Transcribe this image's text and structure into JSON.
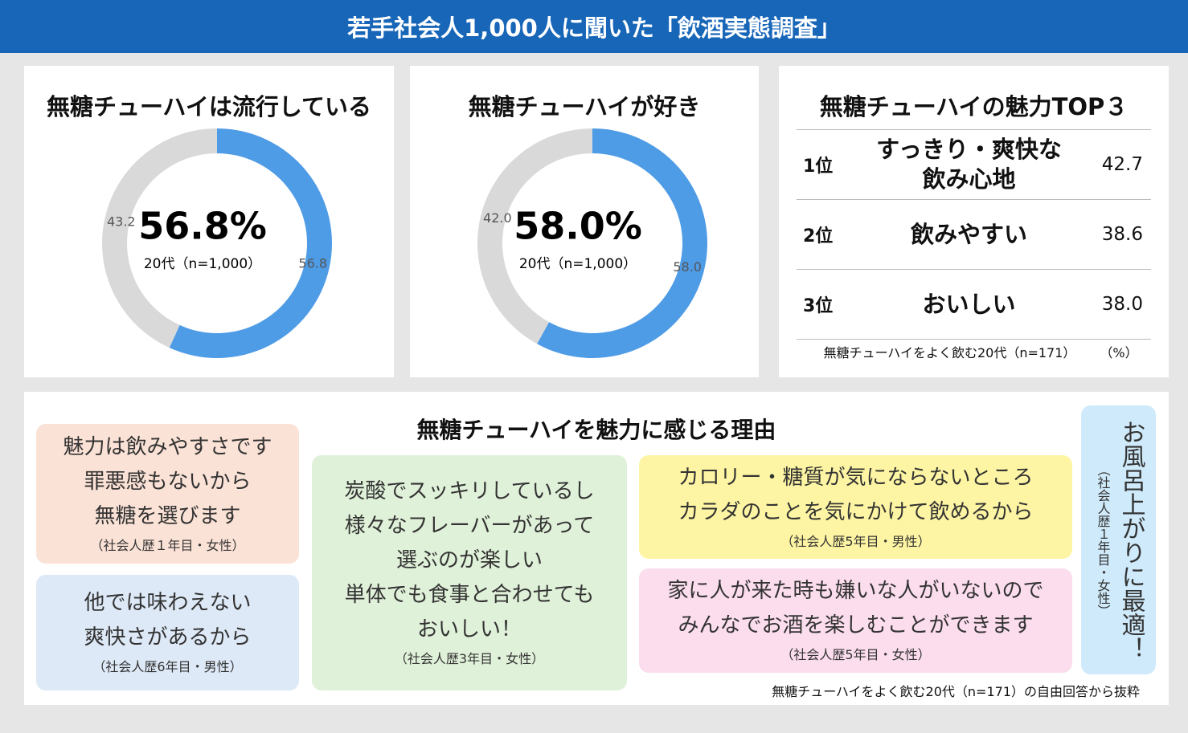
{
  "header": {
    "title": "若手社会人1,000人に聞いた「飲酒実態調査」"
  },
  "chart_data": [
    {
      "type": "pie",
      "donut": true,
      "title": "無糖チューハイは流行している",
      "values": [
        56.8,
        43.2
      ],
      "colors": [
        "#4e9be6",
        "#d9d9d9"
      ],
      "center_label": "56.8%",
      "center_note": "20代（n=1,000）"
    },
    {
      "type": "pie",
      "donut": true,
      "title": "無糖チューハイが好き",
      "values": [
        58.0,
        42.0
      ],
      "colors": [
        "#4e9be6",
        "#d9d9d9"
      ],
      "value_labels": [
        "58.0",
        "42.0"
      ],
      "center_label": "58.0%",
      "center_note": "20代（n=1,000）"
    }
  ],
  "ranking": {
    "title": "無糖チューハイの魅力TOP３",
    "rows": [
      {
        "rank": "1位",
        "item": [
          "すっきり・爽快な",
          "飲み心地"
        ],
        "value": "42.7"
      },
      {
        "rank": "2位",
        "item": [
          "飲みやすい"
        ],
        "value": "38.6"
      },
      {
        "rank": "3位",
        "item": [
          "おいしい"
        ],
        "value": "38.0"
      }
    ],
    "note": "無糖チューハイをよく飲む20代（n=171）",
    "unit": "（%）"
  },
  "reasons": {
    "title": "無糖チューハイを魅力に感じる理由",
    "items": [
      {
        "lines": [
          "魅力は飲みやすさです",
          "罪悪感もないから",
          "無糖を選びます"
        ],
        "attribution": "（社会人歴１年目・女性）"
      },
      {
        "lines": [
          "他では味わえない",
          "爽快さがあるから"
        ],
        "attribution": "（社会人歴6年目・男性）"
      },
      {
        "lines": [
          "炭酸でスッキリしているし",
          "様々なフレーバーがあって",
          "選ぶのが楽しい",
          "単体でも食事と合わせても",
          "おいしい！"
        ],
        "attribution": "（社会人歴3年目・女性）"
      },
      {
        "lines": [
          "カロリー・糖質が気にならないところ",
          "カラダのことを気にかけて飲めるから"
        ],
        "attribution": "（社会人歴5年目・男性）"
      },
      {
        "lines": [
          "家に人が来た時も嫌いな人がいないので",
          "みんなでお酒を楽しむことができます"
        ],
        "attribution": "（社会人歴5年目・女性）"
      },
      {
        "lines": [
          "お風呂上がりに最適！"
        ],
        "attribution": "（社会人歴１年目・女性）"
      }
    ],
    "footnote": "無糖チューハイをよく飲む20代（n=171）の自由回答から抜粋"
  }
}
